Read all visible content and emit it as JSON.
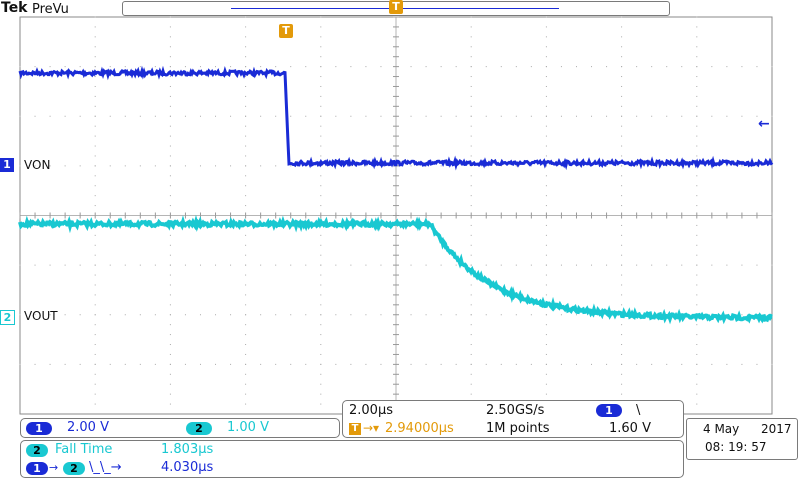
{
  "header": {
    "brand": "Tek",
    "mode": "PreVu",
    "trigger_marker": "T"
  },
  "channels": [
    {
      "id": "1",
      "label": "VON",
      "color": "#1a2bd6"
    },
    {
      "id": "2",
      "label": "VOUT",
      "color": "#19c8d1"
    }
  ],
  "trigger_level_arrow": "←",
  "vertical": {
    "ch1_badge": "1",
    "ch1_scale": "2.00 V",
    "ch2_badge": "2",
    "ch2_scale": "1.00 V"
  },
  "horizontal": {
    "time_div": "2.00µs",
    "sample_rate": "2.50GS/s",
    "trig_src_badge": "1",
    "trig_slope": "\\",
    "trig_pos": "2.94000µs",
    "record_length": "1M points",
    "trig_level": "1.60 V"
  },
  "measurements": [
    {
      "badge": "2",
      "name": "Fall Time",
      "value": "1.803µs"
    },
    {
      "from_badge": "1",
      "to_badge": "2",
      "edges": "\\_\\_→",
      "value": "4.030µs"
    }
  ],
  "datetime": {
    "date": "4 May",
    "year": "2017",
    "time": "08: 19: 57"
  },
  "colors": {
    "ch1": "#1a2bd6",
    "ch2": "#19c8d1",
    "trigger": "#e39a0a",
    "grid": "#a9a9a9"
  }
}
